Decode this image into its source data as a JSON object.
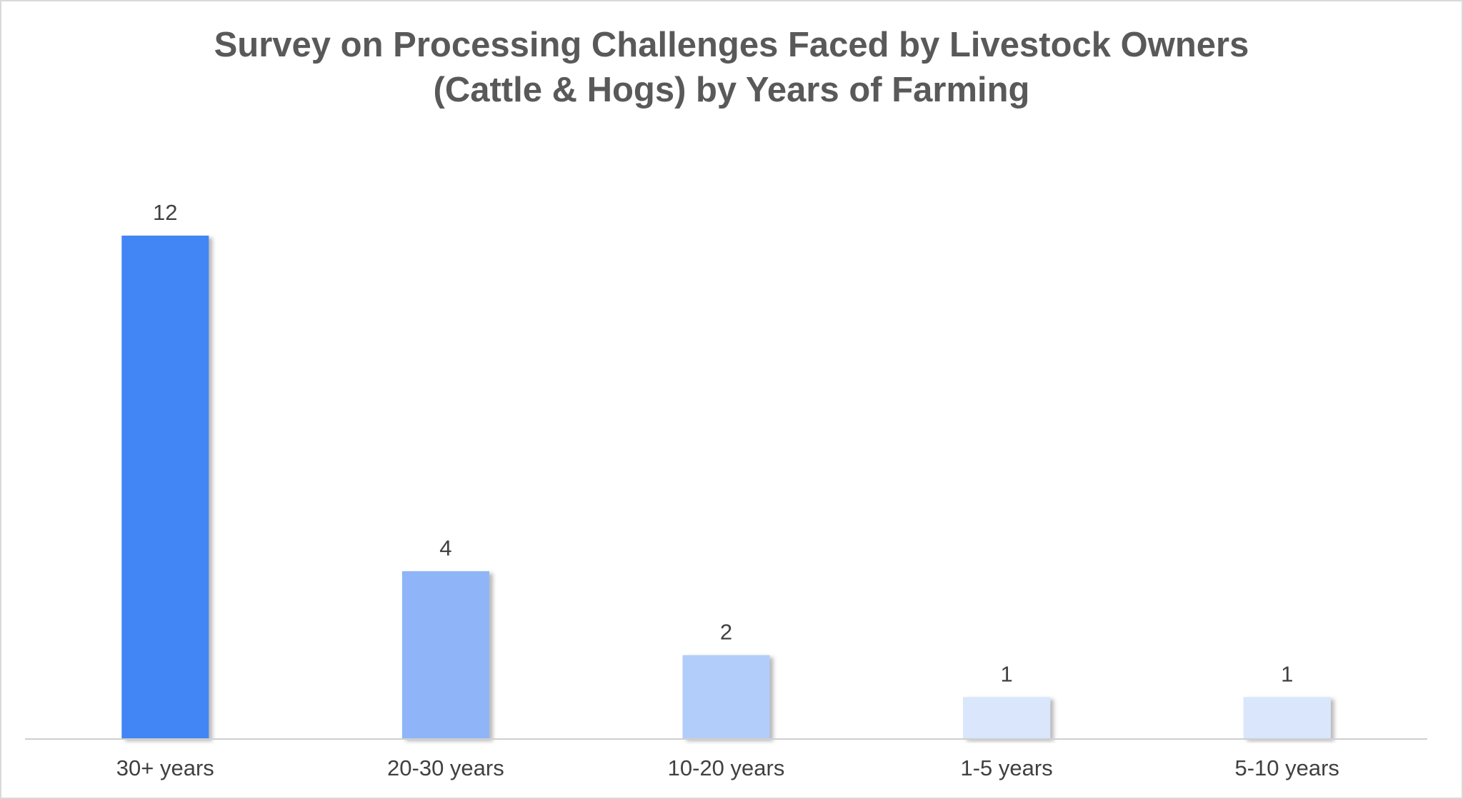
{
  "chart_data": {
    "type": "bar",
    "title_lines": [
      "Survey on Processing Challenges Faced by Livestock Owners",
      "(Cattle & Hogs) by Years of Farming"
    ],
    "categories": [
      "30+ years",
      "20-30 years",
      "10-20 years",
      "1-5 years",
      "5-10 years"
    ],
    "values": [
      12,
      4,
      2,
      1,
      1
    ],
    "bar_colors": [
      "#4285f4",
      "#8fb5f8",
      "#b3cdfa",
      "#d9e6fc",
      "#d9e6fc"
    ],
    "xlabel": "",
    "ylabel": "",
    "ylim": [
      0,
      12
    ],
    "grid": false,
    "legend": "none",
    "data_labels": true
  }
}
